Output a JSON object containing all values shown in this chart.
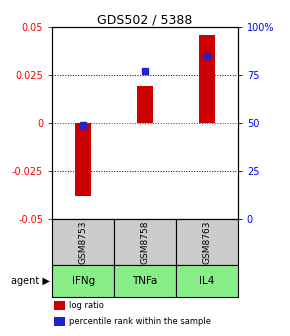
{
  "title": "GDS502 / 5388",
  "samples": [
    "GSM8753",
    "GSM8758",
    "GSM8763"
  ],
  "agents": [
    "IFNg",
    "TNFa",
    "IL4"
  ],
  "log_ratios": [
    -0.038,
    0.019,
    0.046
  ],
  "percentile_ranks": [
    49,
    77,
    85
  ],
  "ylim_left": [
    -0.05,
    0.05
  ],
  "ylim_right": [
    0,
    100
  ],
  "bar_color": "#cc0000",
  "dot_color": "#2222cc",
  "sample_bg": "#cccccc",
  "agent_bg": "#88ee88",
  "yticks_left": [
    -0.05,
    -0.025,
    0,
    0.025,
    0.05
  ],
  "yticks_right": [
    0,
    25,
    50,
    75,
    100
  ],
  "ytick_labels_left": [
    "-0.05",
    "-0.025",
    "0",
    "0.025",
    "0.05"
  ],
  "ytick_labels_right": [
    "0",
    "25",
    "50",
    "75",
    "100%"
  ],
  "gridlines": [
    0.025,
    0.0,
    -0.025
  ],
  "legend_bar": "log ratio",
  "legend_dot": "percentile rank within the sample",
  "bar_width": 0.25
}
